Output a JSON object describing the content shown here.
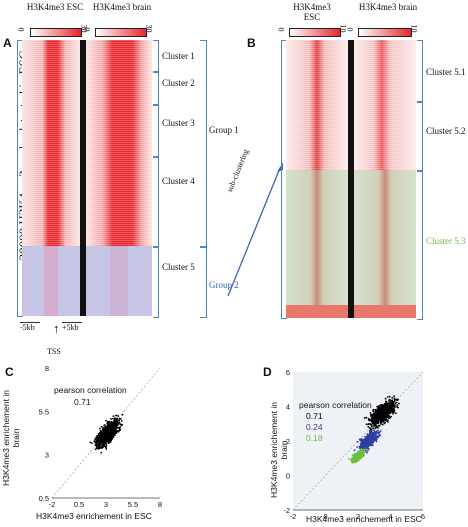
{
  "panels": {
    "A": {
      "letter": "A",
      "col1_title": "H3K4me3 ESC",
      "col2_title": "H3K4me3 brain",
      "scale1": {
        "min": "0",
        "max": "30"
      },
      "scale2": {
        "min": "0",
        "max": "30"
      },
      "y_title": "~20000 H3K4me3 peaks detected in ESC",
      "clusters": [
        "Cluster 1",
        "Cluster 2",
        "Cluster 3",
        "Cluster 4",
        "Cluster 5"
      ],
      "group1": "Group 1",
      "group2": "Group 2",
      "left_tick": "-5kb",
      "right_tick": "+5kb",
      "tss": "TSS"
    },
    "B": {
      "letter": "B",
      "col1_title": "H3K4me3 ESC",
      "col2_title": "H3K4me3 brain",
      "scale1": {
        "min": "0",
        "max": "10"
      },
      "scale2": {
        "min": "0",
        "max": "10"
      },
      "clusters": [
        "Cluster 5.1",
        "Cluster 5.2",
        "Cluster 5.3"
      ],
      "arrow_label": "sub-clustering"
    },
    "C": {
      "letter": "C",
      "corr_title": "pearson correlation",
      "corr_value": "0.71",
      "ylabel": "H3K4me3  enrichement in brain",
      "xlabel": "H3K4me3  enrichement in ESC"
    },
    "D": {
      "letter": "D",
      "corr_title": "pearson correlation",
      "corr_values": [
        {
          "value": "0.71",
          "color": "#000000"
        },
        {
          "value": "0.24",
          "color": "#2e3fa0"
        },
        {
          "value": "0.18",
          "color": "#6bbf3f"
        }
      ],
      "ylabel": "H3K4me3  enrichement in brain",
      "xlabel": "H3K4me3  enrichement in ESC"
    }
  },
  "chart_data": [
    {
      "type": "scatter",
      "panel": "C",
      "xlabel": "H3K4me3  enrichement in ESC",
      "ylabel": "H3K4me3  enrichement in brain",
      "x_ticks": [
        "-2",
        "0.5",
        "3",
        "5.5",
        "8"
      ],
      "y_ticks": [
        "8",
        "5.5",
        "3",
        "0.5"
      ],
      "xlim": [
        -2,
        8
      ],
      "ylim": [
        -2,
        8
      ],
      "grid": false,
      "series": [
        {
          "color": "#000000",
          "cloud": {
            "center_x": 3.2,
            "center_y": 3.0,
            "spread": 1.2,
            "slope": 0.71
          }
        }
      ],
      "diagonal": true
    },
    {
      "type": "scatter",
      "panel": "D",
      "xlabel": "H3K4me3  enrichement in ESC",
      "ylabel": "H3K4me3  enrichement in brain",
      "x_ticks": [
        "-2",
        "0",
        "2",
        "4",
        "6"
      ],
      "y_ticks": [
        "6",
        "4",
        "2",
        "0",
        "-2"
      ],
      "xlim": [
        -2,
        7
      ],
      "ylim": [
        -2,
        7
      ],
      "grid": false,
      "series": [
        {
          "color": "#000000",
          "cloud": {
            "center_x": 4.2,
            "center_y": 4.3,
            "spread": 1.0
          }
        },
        {
          "color": "#2e3fa0",
          "cloud": {
            "center_x": 3.2,
            "center_y": 2.5,
            "spread": 0.75
          }
        },
        {
          "color": "#6bbf3f",
          "cloud": {
            "center_x": 2.5,
            "center_y": 1.5,
            "spread": 0.45
          }
        }
      ],
      "diagonal": true
    }
  ]
}
